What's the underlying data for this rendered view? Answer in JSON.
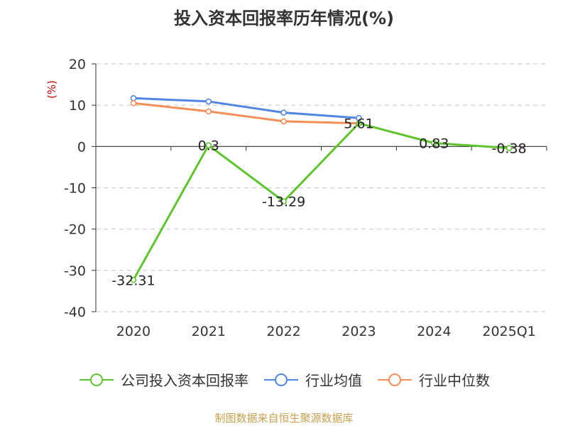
{
  "title": "投入资本回报率历年情况(%)",
  "source": "制图数据来自恒生聚源数据库",
  "chart_data": {
    "type": "line",
    "title": "投入资本回报率历年情况(%)",
    "unit": "(%)",
    "categories": [
      "2020",
      "2021",
      "2022",
      "2023",
      "2024",
      "2025Q1"
    ],
    "ylim": [
      -40,
      20
    ],
    "yticks": [
      20,
      10,
      0,
      -10,
      -20,
      -30,
      -40
    ],
    "grid": true,
    "legend_position": "bottom",
    "series": [
      {
        "name": "公司投入资本回报率",
        "color": "#5ec42d",
        "values": [
          -32.31,
          0.3,
          -13.29,
          5.61,
          0.83,
          -0.38
        ],
        "labels": [
          "-32.31",
          "0.3",
          "-13.29",
          "5.61",
          "0.83",
          "-0.38"
        ]
      },
      {
        "name": "行业均值",
        "color": "#4f86e3",
        "values": [
          11.7,
          10.9,
          8.2,
          6.9,
          null,
          null
        ]
      },
      {
        "name": "行业中位数",
        "color": "#f68e58",
        "values": [
          10.5,
          8.5,
          6.1,
          5.6,
          null,
          null
        ]
      }
    ]
  }
}
